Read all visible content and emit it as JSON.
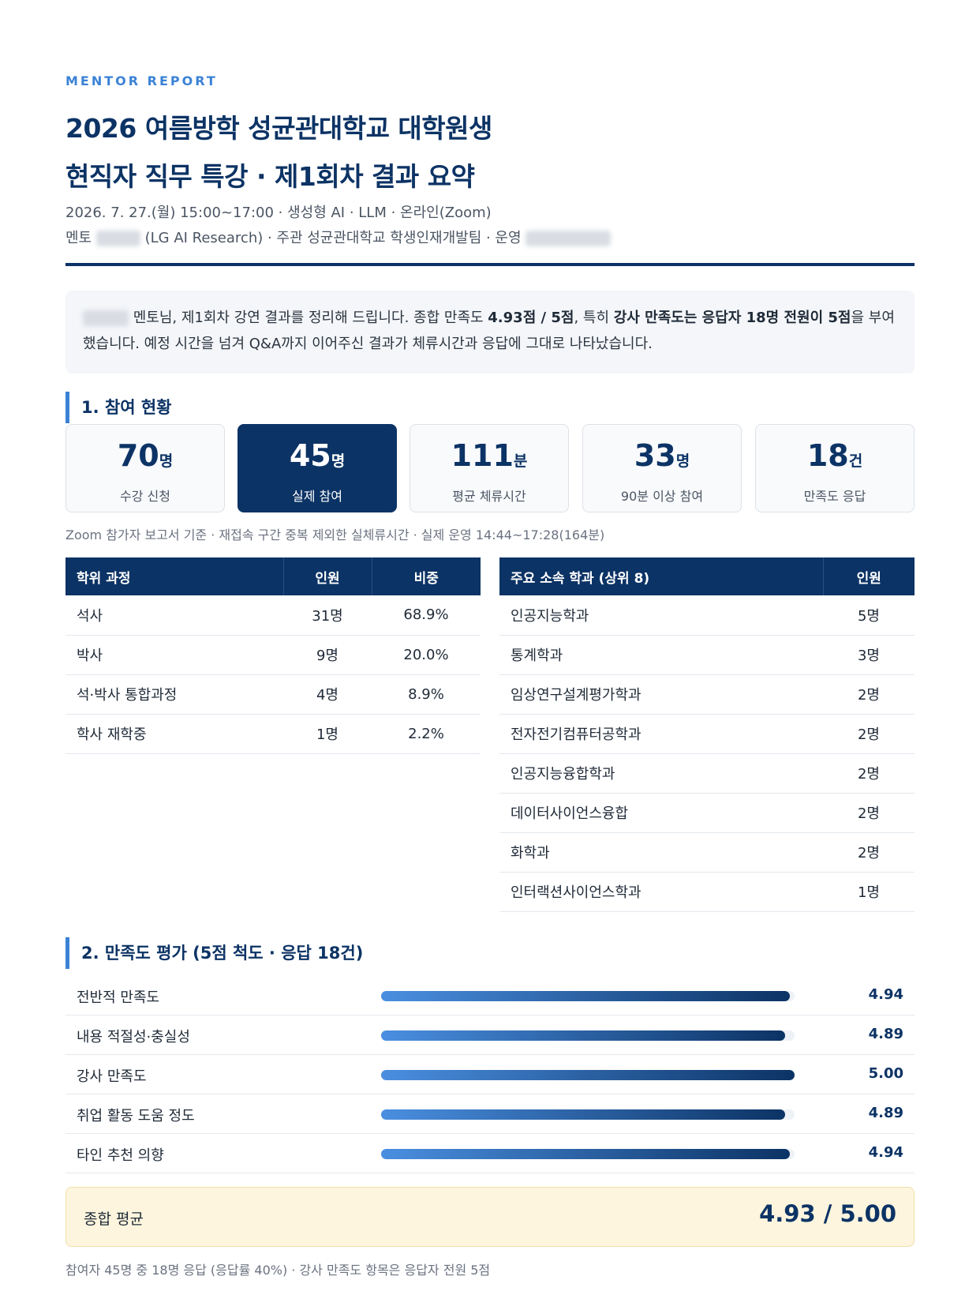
{
  "header": {
    "eyebrow": "MENTOR REPORT",
    "title_line1": "2026 여름방학 성균관대학교 대학원생",
    "title_line2": "현직자 직무 특강 · 제1회차 결과 요약",
    "meta_line1": "2026. 7. 27.(월) 15:00~17:00 · 생성형 AI · LLM · 온라인(Zoom)",
    "meta_line2_prefix": "멘토",
    "meta_line2_middle": "(LG AI Research) · 주관 성균관대학교 학생인재개발팀 · 운영"
  },
  "summary": {
    "part1": "멘토님, 제1회차 강연 결과를 정리해 드립니다. 종합 만족도 ",
    "bold1": "4.93점 / 5점",
    "part2": ", 특히 ",
    "bold2": "강사 만족도는 응답자 18명 전원이 5점",
    "part3": "을 부여했습니다. 예정 시간을 넘겨 Q&A까지 이어주신 결과가 체류시간과 응답에 그대로 나타났습니다."
  },
  "section1": {
    "title": "1. 참여 현황",
    "stats": [
      {
        "num": "70",
        "unit": "명",
        "label": "수강 신청"
      },
      {
        "num": "45",
        "unit": "명",
        "label": "실제 참여"
      },
      {
        "num": "111",
        "unit": "분",
        "label": "평균 체류시간"
      },
      {
        "num": "33",
        "unit": "명",
        "label": "90분 이상 참여"
      },
      {
        "num": "18",
        "unit": "건",
        "label": "만족도 응답"
      }
    ],
    "note": "Zoom 참가자 보고서 기준 · 재접속 구간 중복 제외한 실체류시간 · 실제 운영 14:44~17:28(164분)"
  },
  "degree_table": {
    "headers": [
      "학위 과정",
      "인원",
      "비중"
    ],
    "rows": [
      [
        "석사",
        "31명",
        "68.9%"
      ],
      [
        "박사",
        "9명",
        "20.0%"
      ],
      [
        "석·박사 통합과정",
        "4명",
        "8.9%"
      ],
      [
        "학사 재학중",
        "1명",
        "2.2%"
      ]
    ]
  },
  "dept_table": {
    "headers": [
      "주요 소속 학과 (상위 8)",
      "인원"
    ],
    "rows": [
      [
        "인공지능학과",
        "5명"
      ],
      [
        "통계학과",
        "3명"
      ],
      [
        "임상연구설계평가학과",
        "2명"
      ],
      [
        "전자전기컴퓨터공학과",
        "2명"
      ],
      [
        "인공지능융합학과",
        "2명"
      ],
      [
        "데이터사이언스융합",
        "2명"
      ],
      [
        "화학과",
        "2명"
      ],
      [
        "인터랙션사이언스학과",
        "1명"
      ]
    ]
  },
  "section2": {
    "title": "2. 만족도 평가 (5점 척도 · 응답 18건)",
    "items": [
      {
        "label": "전반적 만족도",
        "value": "4.94",
        "score": 4.94
      },
      {
        "label": "내용 적절성·충실성",
        "value": "4.89",
        "score": 4.89
      },
      {
        "label": "강사 만족도",
        "value": "5.00",
        "score": 5.0
      },
      {
        "label": "취업 활동 도움 정도",
        "value": "4.89",
        "score": 4.89
      },
      {
        "label": "타인 추천 의향",
        "value": "4.94",
        "score": 4.94
      }
    ],
    "max_score": 5,
    "avg_label": "종합 평균",
    "avg_value": "4.93 / 5.00",
    "footnote": "참여자 45명 중 18명 응답 (응답률 40%) · 강사 만족도 항목은 응답자 전원 5점"
  }
}
